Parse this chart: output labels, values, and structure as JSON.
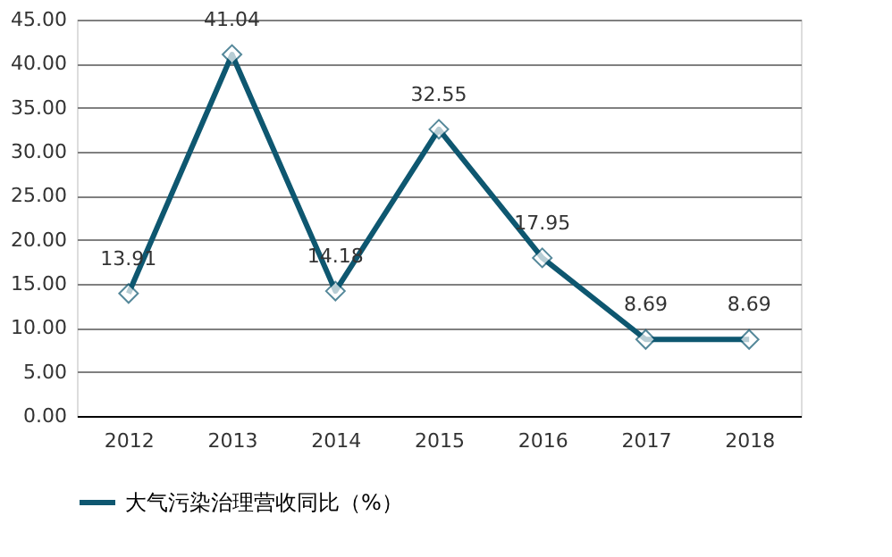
{
  "chart_data": {
    "type": "line",
    "categories": [
      "2012",
      "2013",
      "2014",
      "2015",
      "2016",
      "2017",
      "2018"
    ],
    "series": [
      {
        "name": "大气污染治理营收同比（%）",
        "color": "#0e5770",
        "values": [
          13.91,
          41.04,
          14.18,
          32.55,
          17.95,
          8.69,
          8.69
        ]
      }
    ],
    "ylim": [
      0,
      45
    ],
    "yticks": [
      {
        "value": 0,
        "label": "0.00"
      },
      {
        "value": 5,
        "label": "5.00"
      },
      {
        "value": 10,
        "label": "10.00"
      },
      {
        "value": 15,
        "label": "15.00"
      },
      {
        "value": 20,
        "label": "20.00"
      },
      {
        "value": 25,
        "label": "25.00"
      },
      {
        "value": 30,
        "label": "30.00"
      },
      {
        "value": 35,
        "label": "35.00"
      },
      {
        "value": 40,
        "label": "40.00"
      },
      {
        "value": 45,
        "label": "45.00"
      }
    ],
    "grid": "y",
    "legend": "bottom",
    "marker": "diamond",
    "line_style": "solid",
    "data_labels": true
  }
}
